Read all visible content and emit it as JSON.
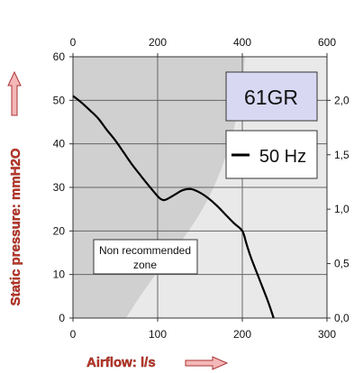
{
  "chart_data": {
    "type": "line",
    "series": [
      {
        "name": "50 Hz",
        "x": [
          0,
          10,
          20,
          30,
          40,
          50,
          60,
          70,
          80,
          90,
          100,
          105,
          110,
          120,
          130,
          140,
          150,
          160,
          170,
          180,
          190,
          200,
          205,
          210,
          220,
          230,
          237
        ],
        "y": [
          51,
          49.5,
          47.7,
          45.8,
          43.2,
          40.8,
          38.0,
          35.2,
          32.7,
          30.3,
          28.0,
          27.2,
          27.2,
          28.3,
          29.4,
          29.6,
          28.8,
          27.5,
          25.8,
          23.8,
          21.8,
          20.0,
          17.0,
          14.0,
          9.0,
          4.0,
          0
        ]
      }
    ],
    "x_axis": {
      "label": "Airflow: l/s",
      "range": [
        0,
        300
      ],
      "ticks": [
        "0",
        "100",
        "200",
        "300"
      ]
    },
    "y_axis": {
      "label": "Static pressure: mmH2O",
      "range": [
        0,
        60
      ],
      "ticks": [
        "0",
        "10",
        "20",
        "30",
        "40",
        "50",
        "60"
      ]
    },
    "top_axis": {
      "range": [
        0,
        600
      ],
      "ticks": [
        "0",
        "200",
        "400",
        "600"
      ]
    },
    "right_axis": {
      "range": [
        0,
        2.4
      ],
      "ticks": [
        "0,0",
        "0,5",
        "1,0",
        "1,5",
        "2,0"
      ]
    },
    "grid": true,
    "model_label": "61GR",
    "legend_label": "50 Hz",
    "annotation": [
      "Non recommended",
      "zone"
    ]
  },
  "colors": {
    "model_box_fill": "#d8d8f3",
    "dark_zone": "#d0d0d0",
    "light_zone": "#e9e9e9",
    "curve": "#000000",
    "axis_label_red": "#c0392b",
    "arrow_fill": "#f4b8b8"
  }
}
